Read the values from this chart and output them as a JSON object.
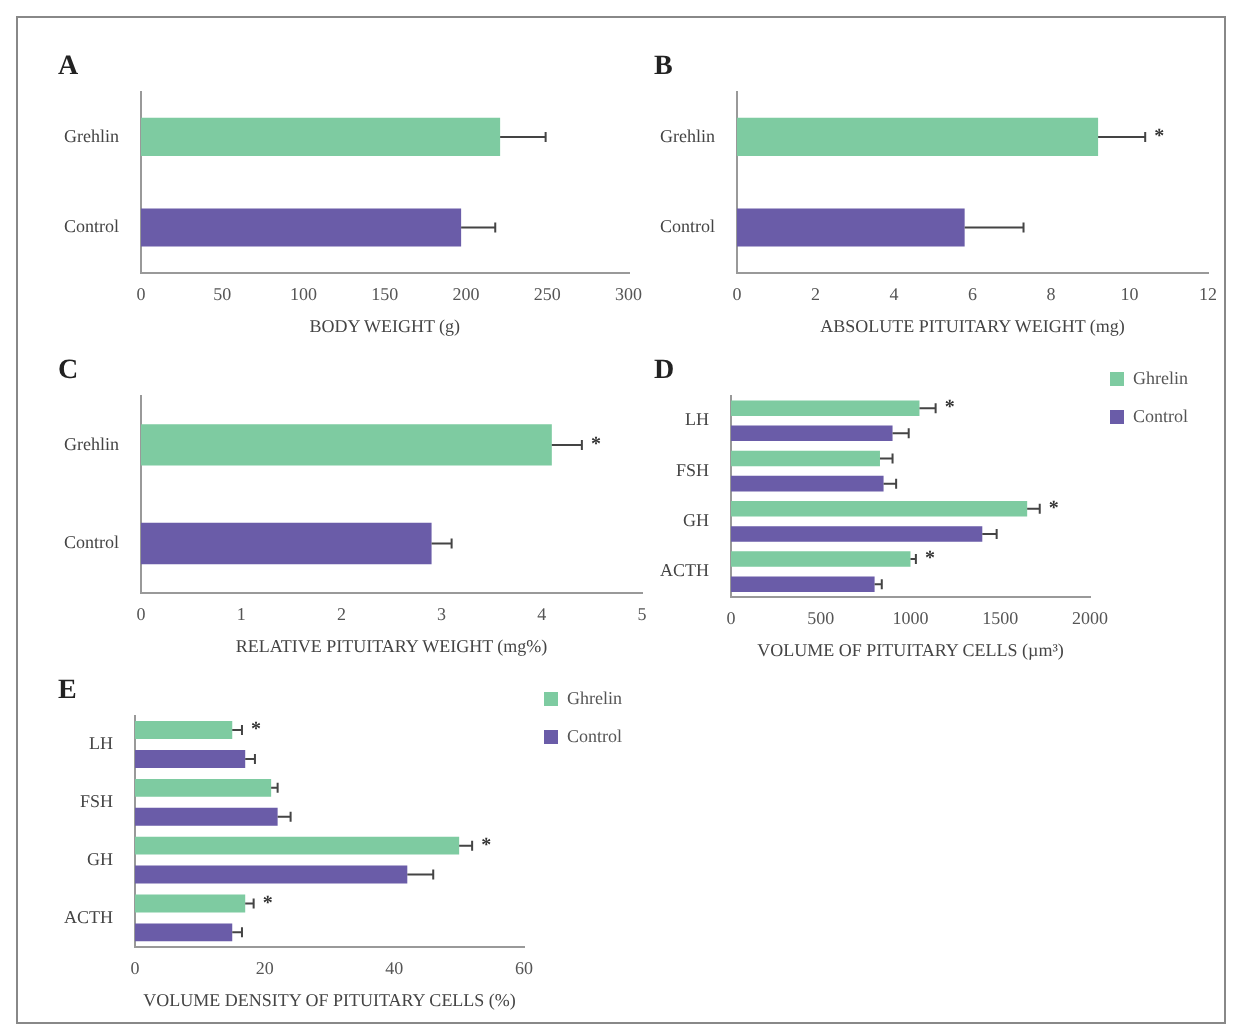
{
  "chart_data": [
    {
      "type": "bar",
      "orientation": "horizontal",
      "title": "A",
      "xlabel": "BODY WEIGHT (g)",
      "categories": [
        "Grehlin",
        "Control"
      ],
      "series": [
        {
          "colors": [
            "#7ecba1",
            "#6a5ca8"
          ],
          "values": [
            221,
            197
          ],
          "errors": [
            28,
            21
          ]
        }
      ],
      "xlim": [
        0,
        300
      ],
      "xticks": [
        0,
        50,
        100,
        150,
        200,
        250,
        300
      ],
      "grid": false,
      "legend": false
    },
    {
      "type": "bar",
      "orientation": "horizontal",
      "title": "B",
      "xlabel": "ABSOLUTE PITUITARY WEIGHT (mg)",
      "categories": [
        "Grehlin",
        "Control"
      ],
      "series": [
        {
          "colors": [
            "#7ecba1",
            "#6a5ca8"
          ],
          "values": [
            9.2,
            5.8
          ],
          "errors": [
            1.2,
            1.5
          ]
        }
      ],
      "xlim": [
        0,
        12
      ],
      "xticks": [
        0,
        2,
        4,
        6,
        8,
        10,
        12
      ],
      "grid": false,
      "legend": false,
      "annotations": [
        {
          "text": "*",
          "x": 9.2,
          "y": "Grehlin"
        }
      ]
    },
    {
      "type": "bar",
      "orientation": "horizontal",
      "title": "C",
      "xlabel": "RELATIVE PITUITARY WEIGHT (mg%)",
      "categories": [
        "Grehlin",
        "Control"
      ],
      "series": [
        {
          "colors": [
            "#7ecba1",
            "#6a5ca8"
          ],
          "values": [
            4.1,
            2.9
          ],
          "errors": [
            0.3,
            0.2
          ]
        }
      ],
      "xlim": [
        0,
        5
      ],
      "xticks": [
        0,
        1,
        2,
        3,
        4,
        5
      ],
      "grid": false,
      "legend": false,
      "annotations": [
        {
          "text": "*",
          "x": 4.1,
          "y": "Grehlin"
        }
      ]
    },
    {
      "type": "bar",
      "orientation": "horizontal",
      "title": "D",
      "xlabel": "VOLUME OF PITUITARY CELLS (µm³)",
      "categories": [
        "LH",
        "FSH",
        "GH",
        "ACTH"
      ],
      "series": [
        {
          "name": "Ghrelin",
          "color": "#7ecba1",
          "values": [
            1050,
            830,
            1650,
            1000
          ],
          "errors": [
            90,
            70,
            70,
            30
          ]
        },
        {
          "name": "Control",
          "color": "#6a5ca8",
          "values": [
            900,
            850,
            1400,
            800
          ],
          "errors": [
            90,
            70,
            80,
            40
          ]
        }
      ],
      "xlim": [
        0,
        2000
      ],
      "xticks": [
        0,
        500,
        1000,
        1500,
        2000
      ],
      "grid": false,
      "legend": "top right",
      "annotations": [
        {
          "text": "*",
          "x": 1050,
          "y": "LH"
        },
        {
          "text": "*",
          "x": 1650,
          "y": "GH"
        },
        {
          "text": "*",
          "x": 1000,
          "y": "ACTH"
        }
      ]
    },
    {
      "type": "bar",
      "orientation": "horizontal",
      "title": "E",
      "xlabel": "VOLUME DENSITY OF PITUITARY CELLS (%)",
      "categories": [
        "LH",
        "FSH",
        "GH",
        "ACTH"
      ],
      "series": [
        {
          "name": "Ghrelin",
          "color": "#7ecba1",
          "values": [
            15,
            21,
            50,
            17
          ],
          "errors": [
            1.5,
            1,
            2,
            1.3
          ]
        },
        {
          "name": "Control",
          "color": "#6a5ca8",
          "values": [
            17,
            22,
            42,
            15
          ],
          "errors": [
            1.5,
            2,
            4,
            1.5
          ]
        }
      ],
      "xlim": [
        0,
        60
      ],
      "xticks": [
        0,
        20,
        40,
        60
      ],
      "grid": false,
      "legend": "top right",
      "annotations": [
        {
          "text": "*",
          "x": 15,
          "y": "LH"
        },
        {
          "text": "*",
          "x": 50,
          "y": "GH"
        },
        {
          "text": "*",
          "x": 17,
          "y": "ACTH"
        }
      ]
    }
  ]
}
